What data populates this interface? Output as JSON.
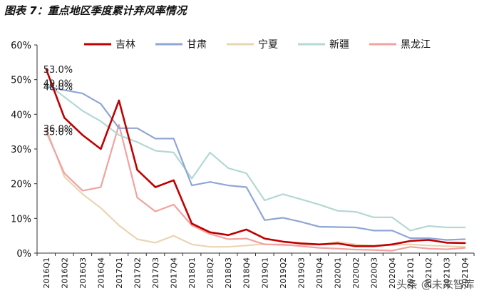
{
  "title": "图表 7：重点地区季度累计弃风率情况",
  "watermark": "头条 @未来智库",
  "chart_data": {
    "type": "line",
    "title": "图表 7：重点地区季度累计弃风率情况",
    "xlabel": "",
    "ylabel": "",
    "ylim": [
      0,
      60
    ],
    "yticks": [
      "0%",
      "10%",
      "20%",
      "30%",
      "40%",
      "50%",
      "60%"
    ],
    "yticks_values": [
      0,
      10,
      20,
      30,
      40,
      50,
      60
    ],
    "categories": [
      "2016Q1",
      "2016Q2",
      "2016Q3",
      "2016Q4",
      "2017Q1",
      "2017Q2",
      "2017Q3",
      "2017Q4",
      "2018Q1",
      "2018Q2",
      "2018Q3",
      "2018Q4",
      "2019Q1",
      "2019Q2",
      "2019Q3",
      "2019Q4",
      "2020Q1",
      "2020Q2",
      "2020Q3",
      "2020Q4",
      "2021Q1",
      "2021Q2",
      "2021Q3",
      "2021Q4"
    ],
    "series": [
      {
        "name": "吉林",
        "color": "#c00000",
        "width": 2.6,
        "values": [
          53.0,
          39,
          34,
          30,
          44,
          24,
          19,
          21,
          8.5,
          6.0,
          5.2,
          6.8,
          4.2,
          3.3,
          2.8,
          2.5,
          2.8,
          2.0,
          2.0,
          2.5,
          3.5,
          3.8,
          3.0,
          2.9
        ]
      },
      {
        "name": "甘肃",
        "color": "#8fa6d6",
        "width": 2.2,
        "values": [
          48.0,
          47,
          46,
          43,
          36,
          36,
          33,
          33,
          19.5,
          20.5,
          19.5,
          19,
          9.5,
          10.2,
          9,
          7.6,
          7.5,
          7.4,
          6.5,
          6.5,
          4.3,
          4.3,
          3.8,
          4.0
        ]
      },
      {
        "name": "宁夏",
        "color": "#ead5b3",
        "width": 2.2,
        "values": [
          36.0,
          22,
          17,
          13,
          8,
          4,
          3,
          5,
          2.5,
          1.8,
          1.8,
          2.2,
          2.6,
          2.2,
          2.3,
          2.4,
          3.2,
          2.5,
          2.2,
          2.3,
          2.5,
          2.2,
          2.0,
          1.8
        ]
      },
      {
        "name": "新疆",
        "color": "#b4d8d4",
        "width": 2.2,
        "values": [
          49.0,
          45,
          41,
          38,
          34,
          32,
          29.5,
          29,
          21.5,
          29,
          24.5,
          23,
          15.2,
          17,
          15.5,
          14,
          12.2,
          11.9,
          10.3,
          10.3,
          6.5,
          7.8,
          7.4,
          7.4
        ]
      },
      {
        "name": "黑龙江",
        "color": "#f3a1a1",
        "width": 2.2,
        "values": [
          35.0,
          23,
          18,
          19,
          37,
          16,
          12,
          14,
          8,
          5.5,
          4.0,
          4.2,
          2.5,
          2.5,
          2.0,
          1.5,
          1.3,
          1.0,
          0.9,
          0.7,
          1.8,
          1.3,
          1.1,
          1.5
        ]
      }
    ],
    "annotations": [
      {
        "text": "53.0%",
        "series": "吉林",
        "index": 0
      },
      {
        "text": "49.0%",
        "series": "新疆",
        "index": 0
      },
      {
        "text": "48.0%",
        "series": "甘肃",
        "index": 0
      },
      {
        "text": "36.0%",
        "series": "宁夏",
        "index": 0
      },
      {
        "text": "35.0%",
        "series": "黑龙江",
        "index": 0
      }
    ],
    "legend": "top",
    "grid": false
  }
}
